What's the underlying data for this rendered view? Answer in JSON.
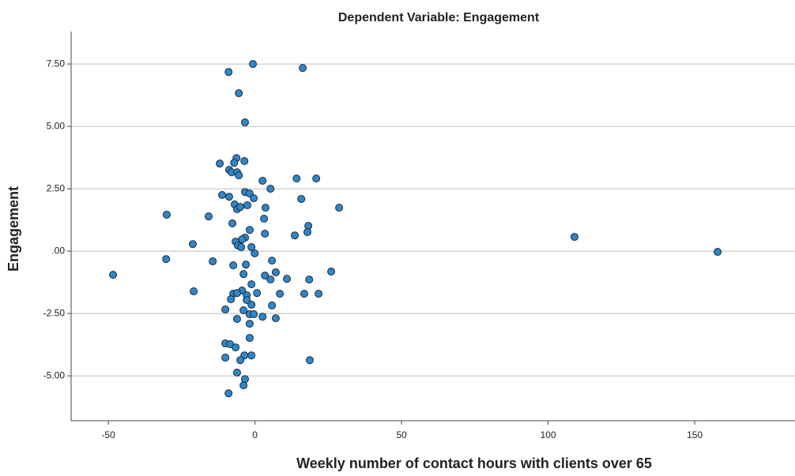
{
  "chart_data": {
    "type": "scatter",
    "title": "Dependent Variable: Engagement",
    "x_label": "Weekly number of contact hours with clients over 65",
    "y_label": "Engagement",
    "color": "#2f86c8",
    "edge_color": "#1a2a3a",
    "grid": true,
    "xlim": [
      -62.7,
      184.2
    ],
    "ylim": [
      -6.8,
      8.8
    ],
    "xticks": [
      -50,
      0,
      50,
      100,
      150
    ],
    "yticks": [
      {
        "value": 7.5,
        "label": "7.50"
      },
      {
        "value": 5,
        "label": "5.00"
      },
      {
        "value": 2.5,
        "label": "2.50"
      },
      {
        "value": 0,
        "label": ".00"
      },
      {
        "value": -2.5,
        "label": "-2.50"
      },
      {
        "value": -5,
        "label": "-5.00"
      }
    ],
    "x": [
      -9.0,
      -0.7,
      16.3,
      -5.5,
      -3.4,
      -12.0,
      -8.8,
      -6.3,
      -7.1,
      -3.6,
      -8.0,
      -6.1,
      -5.5,
      2.6,
      14.2,
      20.9,
      5.3,
      -3.4,
      -1.8,
      -11.2,
      -8.8,
      -0.4,
      15.8,
      -6.9,
      -2.6,
      3.6,
      -6.1,
      -5.0,
      28.7,
      -15.8,
      -30.1,
      3.1,
      18.2,
      -7.7,
      -1.8,
      17.9,
      13.6,
      3.4,
      -3.4,
      -4.4,
      -6.6,
      -21.2,
      -5.8,
      -4.7,
      -1.2,
      -0.1,
      109.0,
      157.8,
      -30.3,
      -14.4,
      5.8,
      -7.4,
      -3.1,
      -48.4,
      -3.9,
      3.4,
      7.1,
      5.3,
      10.9,
      18.5,
      26.0,
      -1.2,
      -4.4,
      -20.9,
      -7.4,
      -6.1,
      -2.8,
      0.7,
      8.5,
      16.8,
      21.7,
      -8.2,
      -2.8,
      -1.2,
      5.8,
      -10.1,
      -3.9,
      -1.8,
      -0.4,
      2.6,
      7.1,
      -6.1,
      -1.8,
      -1.8,
      -10.1,
      -8.5,
      -6.6,
      -3.6,
      -1.2,
      -5.0,
      -10.1,
      18.7,
      -6.1,
      -3.4,
      -3.9,
      -9.0
    ],
    "values": [
      7.18,
      7.5,
      7.34,
      6.33,
      5.16,
      3.51,
      3.26,
      3.73,
      3.54,
      3.61,
      3.16,
      3.16,
      3.04,
      2.82,
      2.91,
      2.91,
      2.5,
      2.37,
      2.31,
      2.25,
      2.18,
      2.12,
      2.09,
      1.87,
      1.84,
      1.74,
      1.68,
      1.77,
      1.74,
      1.39,
      1.46,
      1.3,
      1.01,
      1.11,
      0.85,
      0.76,
      0.63,
      0.7,
      0.54,
      0.47,
      0.38,
      0.28,
      0.22,
      0.16,
      0.16,
      -0.09,
      0.57,
      -0.03,
      -0.32,
      -0.41,
      -0.38,
      -0.57,
      -0.54,
      -0.95,
      -0.92,
      -0.98,
      -0.85,
      -1.14,
      -1.11,
      -1.14,
      -0.82,
      -1.33,
      -1.58,
      -1.61,
      -1.71,
      -1.68,
      -1.77,
      -1.68,
      -1.71,
      -1.71,
      -1.71,
      -1.93,
      -1.96,
      -2.15,
      -2.18,
      -2.34,
      -2.37,
      -2.53,
      -2.53,
      -2.63,
      -2.69,
      -2.72,
      -2.91,
      -3.48,
      -3.7,
      -3.73,
      -3.86,
      -4.18,
      -4.18,
      -4.37,
      -4.27,
      -4.37,
      -4.87,
      -5.13,
      -5.38,
      -5.7
    ]
  }
}
